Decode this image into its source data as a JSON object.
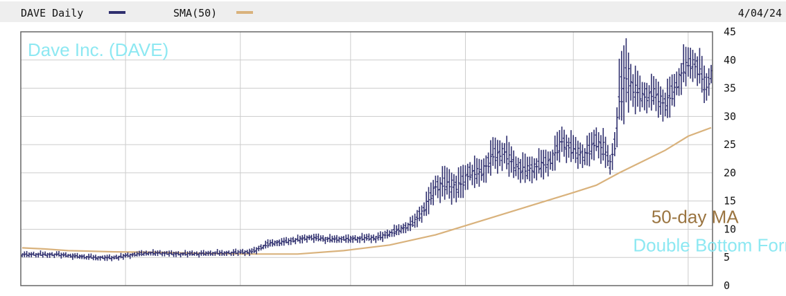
{
  "header": {
    "series_label": "DAVE Daily",
    "sma_label": "SMA(50)",
    "date": "4/04/24"
  },
  "chart_data": {
    "type": "ohlc",
    "title": "Dave Inc. (DAVE)",
    "x_range": [
      0,
      300
    ],
    "ylim": [
      0,
      45
    ],
    "y_ticks": [
      0,
      5,
      10,
      15,
      20,
      25,
      30,
      35,
      40,
      45
    ],
    "grid": true,
    "x_gridlines_at": [
      45,
      95,
      143,
      193,
      240,
      290
    ],
    "colors": {
      "price": "#2f2f6e",
      "sma": "#d9b27c",
      "title": "#8de8f2",
      "annotation_ma": "#9a7440",
      "annotation_pattern": "#8de8f2"
    },
    "series": [
      {
        "name": "DAVE Daily",
        "kind": "bars",
        "anchors": [
          [
            0,
            5.5,
            0.5
          ],
          [
            15,
            5.5,
            0.5
          ],
          [
            30,
            5.0,
            0.5
          ],
          [
            40,
            4.9,
            0.5
          ],
          [
            45,
            5.3,
            0.5
          ],
          [
            55,
            5.8,
            0.5
          ],
          [
            70,
            5.6,
            0.5
          ],
          [
            90,
            5.8,
            0.5
          ],
          [
            100,
            6.0,
            0.6
          ],
          [
            108,
            7.5,
            0.7
          ],
          [
            115,
            7.8,
            0.7
          ],
          [
            125,
            8.5,
            0.7
          ],
          [
            135,
            8.2,
            0.7
          ],
          [
            145,
            8.3,
            0.7
          ],
          [
            155,
            8.5,
            0.8
          ],
          [
            165,
            10.0,
            1.0
          ],
          [
            170,
            11.0,
            1.2
          ],
          [
            175,
            13.5,
            2.0
          ],
          [
            180,
            17.5,
            2.5
          ],
          [
            185,
            18.0,
            3.0
          ],
          [
            190,
            17.5,
            3.0
          ],
          [
            195,
            20.0,
            2.5
          ],
          [
            200,
            20.0,
            2.5
          ],
          [
            205,
            23.0,
            3.0
          ],
          [
            210,
            23.5,
            3.0
          ],
          [
            215,
            21.0,
            2.5
          ],
          [
            220,
            20.5,
            2.5
          ],
          [
            230,
            22.0,
            2.5
          ],
          [
            235,
            25.5,
            3.0
          ],
          [
            240,
            24.0,
            2.5
          ],
          [
            245,
            23.0,
            2.5
          ],
          [
            250,
            25.5,
            3.0
          ],
          [
            253,
            24.5,
            3.0
          ],
          [
            256,
            21.5,
            2.0
          ],
          [
            258,
            25.0,
            3.0
          ],
          [
            260,
            33.0,
            6.0
          ],
          [
            263,
            37.5,
            7.0
          ],
          [
            266,
            35.0,
            4.0
          ],
          [
            270,
            33.5,
            3.0
          ],
          [
            275,
            34.0,
            3.0
          ],
          [
            280,
            32.0,
            3.5
          ],
          [
            285,
            35.5,
            3.0
          ],
          [
            288,
            38.5,
            3.5
          ],
          [
            292,
            39.5,
            3.0
          ],
          [
            295,
            38.0,
            3.5
          ],
          [
            298,
            35.0,
            3.0
          ],
          [
            300,
            37.5,
            2.5
          ]
        ]
      },
      {
        "name": "SMA(50)",
        "kind": "line",
        "points": [
          [
            0,
            6.7
          ],
          [
            10,
            6.5
          ],
          [
            20,
            6.2
          ],
          [
            40,
            6.0
          ],
          [
            60,
            5.9
          ],
          [
            80,
            5.7
          ],
          [
            100,
            5.6
          ],
          [
            120,
            5.6
          ],
          [
            140,
            6.2
          ],
          [
            160,
            7.2
          ],
          [
            180,
            9.0
          ],
          [
            200,
            11.5
          ],
          [
            220,
            14.0
          ],
          [
            240,
            16.5
          ],
          [
            250,
            17.8
          ],
          [
            260,
            20.0
          ],
          [
            270,
            22.0
          ],
          [
            280,
            24.0
          ],
          [
            290,
            26.5
          ],
          [
            300,
            28.0
          ]
        ]
      }
    ],
    "annotations": [
      {
        "text": "50-day MA",
        "x": 274,
        "y": 11.1,
        "color": "annotation_ma"
      },
      {
        "text": "Double Bottom Formation",
        "x": 266,
        "y": 6.1,
        "color": "annotation_pattern"
      }
    ]
  }
}
